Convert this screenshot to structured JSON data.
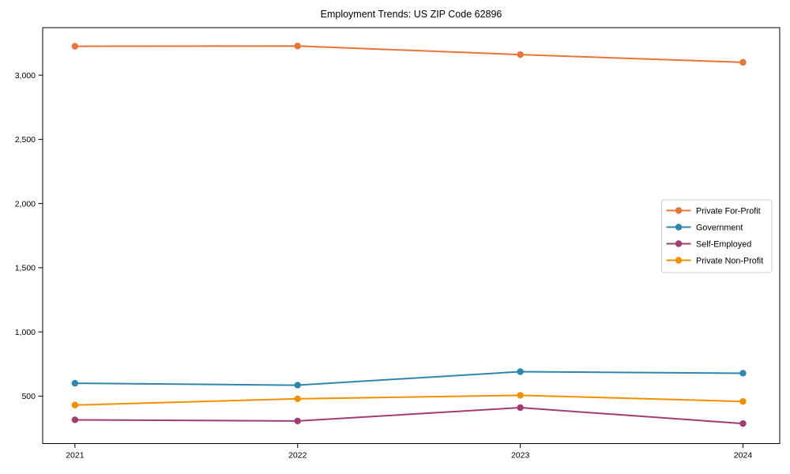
{
  "chart_data": {
    "type": "line",
    "title": "Employment Trends: US ZIP Code 62896",
    "xlabel": "",
    "ylabel": "",
    "x": [
      2021,
      2022,
      2023,
      2024
    ],
    "x_tick_labels": [
      "2021",
      "2022",
      "2023",
      "2024"
    ],
    "series": [
      {
        "name": "Private For-Profit",
        "color": "#E8743B",
        "values": [
          3225,
          3227,
          3160,
          3100
        ]
      },
      {
        "name": "Government",
        "color": "#2E86AB",
        "values": [
          600,
          585,
          690,
          678
        ]
      },
      {
        "name": "Self-Employed",
        "color": "#A23B72",
        "values": [
          315,
          306,
          410,
          286
        ]
      },
      {
        "name": "Private Non-Profit",
        "color": "#F18F01",
        "values": [
          430,
          479,
          506,
          458
        ]
      }
    ],
    "yticks": [
      500,
      1000,
      1500,
      2000,
      2500,
      3000
    ],
    "ytick_labels": [
      "500",
      "1,000",
      "1,500",
      "2,000",
      "2,500",
      "3,000"
    ],
    "xlim": [
      2020.855,
      2024.165
    ],
    "ylim": [
      130,
      3370
    ],
    "grid": false,
    "legend_position": "center-right",
    "plot_border": "#000000",
    "background": "#ffffff"
  }
}
